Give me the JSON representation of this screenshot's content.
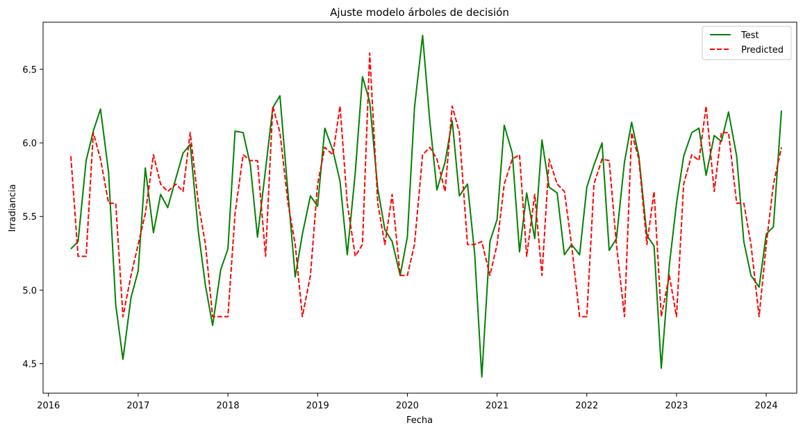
{
  "chart_data": {
    "type": "line",
    "title": "Ajuste modelo árboles de decisión",
    "xlabel": "Fecha",
    "ylabel": "Irradiancia",
    "x_unit": "year (decimal)",
    "xlim": [
      2015.94,
      2024.34
    ],
    "ylim": [
      4.3,
      6.82
    ],
    "x_ticks": [
      2016,
      2017,
      2018,
      2019,
      2020,
      2021,
      2022,
      2023,
      2024
    ],
    "y_ticks": [
      4.5,
      5.0,
      5.5,
      6.0,
      6.5
    ],
    "legend_position": "top-right",
    "grid": false,
    "series": [
      {
        "name": "Test",
        "color": "#008000",
        "style": "solid",
        "points": [
          [
            2016.25,
            5.28
          ],
          [
            2016.33,
            5.33
          ],
          [
            2016.42,
            5.88
          ],
          [
            2016.5,
            6.08
          ],
          [
            2016.58,
            6.23
          ],
          [
            2016.67,
            5.8
          ],
          [
            2016.75,
            4.9
          ],
          [
            2016.83,
            4.53
          ],
          [
            2016.92,
            4.95
          ],
          [
            2017.0,
            5.13
          ],
          [
            2017.08,
            5.83
          ],
          [
            2017.17,
            5.39
          ],
          [
            2017.25,
            5.65
          ],
          [
            2017.33,
            5.56
          ],
          [
            2017.42,
            5.76
          ],
          [
            2017.5,
            5.93
          ],
          [
            2017.58,
            5.99
          ],
          [
            2017.67,
            5.4
          ],
          [
            2017.75,
            5.03
          ],
          [
            2017.83,
            4.76
          ],
          [
            2017.92,
            5.14
          ],
          [
            2018.0,
            5.28
          ],
          [
            2018.08,
            6.08
          ],
          [
            2018.17,
            6.07
          ],
          [
            2018.25,
            5.85
          ],
          [
            2018.33,
            5.36
          ],
          [
            2018.42,
            5.82
          ],
          [
            2018.5,
            6.24
          ],
          [
            2018.58,
            6.32
          ],
          [
            2018.67,
            5.66
          ],
          [
            2018.75,
            5.09
          ],
          [
            2018.83,
            5.38
          ],
          [
            2018.92,
            5.64
          ],
          [
            2019.0,
            5.57
          ],
          [
            2019.08,
            6.1
          ],
          [
            2019.17,
            5.95
          ],
          [
            2019.25,
            5.74
          ],
          [
            2019.33,
            5.24
          ],
          [
            2019.42,
            5.8
          ],
          [
            2019.5,
            6.45
          ],
          [
            2019.58,
            6.28
          ],
          [
            2019.67,
            5.69
          ],
          [
            2019.75,
            5.41
          ],
          [
            2019.83,
            5.33
          ],
          [
            2019.92,
            5.1
          ],
          [
            2020.0,
            5.36
          ],
          [
            2020.08,
            6.24
          ],
          [
            2020.17,
            6.73
          ],
          [
            2020.25,
            6.15
          ],
          [
            2020.33,
            5.68
          ],
          [
            2020.42,
            5.87
          ],
          [
            2020.5,
            6.15
          ],
          [
            2020.58,
            5.64
          ],
          [
            2020.67,
            5.72
          ],
          [
            2020.75,
            5.25
          ],
          [
            2020.83,
            4.41
          ],
          [
            2020.92,
            5.33
          ],
          [
            2021.0,
            5.48
          ],
          [
            2021.08,
            6.12
          ],
          [
            2021.17,
            5.93
          ],
          [
            2021.25,
            5.26
          ],
          [
            2021.33,
            5.66
          ],
          [
            2021.42,
            5.35
          ],
          [
            2021.5,
            6.02
          ],
          [
            2021.58,
            5.7
          ],
          [
            2021.67,
            5.66
          ],
          [
            2021.75,
            5.24
          ],
          [
            2021.83,
            5.31
          ],
          [
            2021.92,
            5.24
          ],
          [
            2022.0,
            5.7
          ],
          [
            2022.08,
            5.85
          ],
          [
            2022.17,
            6.0
          ],
          [
            2022.25,
            5.27
          ],
          [
            2022.33,
            5.35
          ],
          [
            2022.42,
            5.87
          ],
          [
            2022.5,
            6.14
          ],
          [
            2022.58,
            5.91
          ],
          [
            2022.67,
            5.37
          ],
          [
            2022.75,
            5.3
          ],
          [
            2022.83,
            4.47
          ],
          [
            2022.92,
            5.17
          ],
          [
            2023.0,
            5.59
          ],
          [
            2023.08,
            5.91
          ],
          [
            2023.17,
            6.07
          ],
          [
            2023.25,
            6.1
          ],
          [
            2023.33,
            5.78
          ],
          [
            2023.42,
            6.05
          ],
          [
            2023.5,
            6.01
          ],
          [
            2023.58,
            6.21
          ],
          [
            2023.67,
            5.91
          ],
          [
            2023.75,
            5.33
          ],
          [
            2023.83,
            5.1
          ],
          [
            2023.92,
            5.02
          ],
          [
            2024.0,
            5.38
          ],
          [
            2024.08,
            5.43
          ],
          [
            2024.17,
            6.22
          ]
        ]
      },
      {
        "name": "Predicted",
        "color": "#ff0000",
        "style": "dashed",
        "points": [
          [
            2016.25,
            5.91
          ],
          [
            2016.33,
            5.23
          ],
          [
            2016.42,
            5.23
          ],
          [
            2016.5,
            6.07
          ],
          [
            2016.58,
            5.89
          ],
          [
            2016.67,
            5.59
          ],
          [
            2016.75,
            5.59
          ],
          [
            2016.83,
            4.82
          ],
          [
            2016.92,
            5.1
          ],
          [
            2017.0,
            5.31
          ],
          [
            2017.08,
            5.52
          ],
          [
            2017.17,
            5.92
          ],
          [
            2017.25,
            5.72
          ],
          [
            2017.33,
            5.67
          ],
          [
            2017.42,
            5.72
          ],
          [
            2017.5,
            5.67
          ],
          [
            2017.58,
            6.07
          ],
          [
            2017.67,
            5.59
          ],
          [
            2017.75,
            5.31
          ],
          [
            2017.83,
            4.82
          ],
          [
            2017.92,
            4.82
          ],
          [
            2018.0,
            4.82
          ],
          [
            2018.08,
            5.52
          ],
          [
            2018.17,
            5.92
          ],
          [
            2018.25,
            5.88
          ],
          [
            2018.33,
            5.88
          ],
          [
            2018.42,
            5.23
          ],
          [
            2018.5,
            6.25
          ],
          [
            2018.58,
            6.07
          ],
          [
            2018.67,
            5.59
          ],
          [
            2018.75,
            5.31
          ],
          [
            2018.83,
            4.82
          ],
          [
            2018.92,
            5.1
          ],
          [
            2019.0,
            5.72
          ],
          [
            2019.08,
            5.97
          ],
          [
            2019.17,
            5.92
          ],
          [
            2019.25,
            6.25
          ],
          [
            2019.33,
            5.59
          ],
          [
            2019.42,
            5.23
          ],
          [
            2019.5,
            5.31
          ],
          [
            2019.58,
            6.61
          ],
          [
            2019.67,
            5.59
          ],
          [
            2019.75,
            5.31
          ],
          [
            2019.83,
            5.65
          ],
          [
            2019.92,
            5.1
          ],
          [
            2020.0,
            5.1
          ],
          [
            2020.08,
            5.31
          ],
          [
            2020.17,
            5.92
          ],
          [
            2020.25,
            5.97
          ],
          [
            2020.33,
            5.89
          ],
          [
            2020.42,
            5.67
          ],
          [
            2020.5,
            6.25
          ],
          [
            2020.58,
            6.07
          ],
          [
            2020.67,
            5.31
          ],
          [
            2020.75,
            5.31
          ],
          [
            2020.83,
            5.33
          ],
          [
            2020.92,
            5.1
          ],
          [
            2021.0,
            5.31
          ],
          [
            2021.08,
            5.72
          ],
          [
            2021.17,
            5.89
          ],
          [
            2021.25,
            5.92
          ],
          [
            2021.33,
            5.23
          ],
          [
            2021.42,
            5.65
          ],
          [
            2021.5,
            5.1
          ],
          [
            2021.58,
            5.89
          ],
          [
            2021.67,
            5.72
          ],
          [
            2021.75,
            5.67
          ],
          [
            2021.83,
            5.31
          ],
          [
            2021.92,
            4.82
          ],
          [
            2022.0,
            4.82
          ],
          [
            2022.08,
            5.72
          ],
          [
            2022.17,
            5.89
          ],
          [
            2022.25,
            5.88
          ],
          [
            2022.33,
            5.31
          ],
          [
            2022.42,
            4.82
          ],
          [
            2022.5,
            6.07
          ],
          [
            2022.58,
            5.89
          ],
          [
            2022.67,
            5.31
          ],
          [
            2022.75,
            5.67
          ],
          [
            2022.83,
            4.82
          ],
          [
            2022.92,
            5.1
          ],
          [
            2023.0,
            4.82
          ],
          [
            2023.08,
            5.72
          ],
          [
            2023.17,
            5.92
          ],
          [
            2023.25,
            5.88
          ],
          [
            2023.33,
            6.25
          ],
          [
            2023.42,
            5.67
          ],
          [
            2023.5,
            6.07
          ],
          [
            2023.58,
            6.07
          ],
          [
            2023.67,
            5.59
          ],
          [
            2023.75,
            5.59
          ],
          [
            2023.83,
            5.31
          ],
          [
            2023.92,
            4.82
          ],
          [
            2024.0,
            5.31
          ],
          [
            2024.08,
            5.72
          ],
          [
            2024.17,
            5.97
          ]
        ]
      }
    ]
  }
}
